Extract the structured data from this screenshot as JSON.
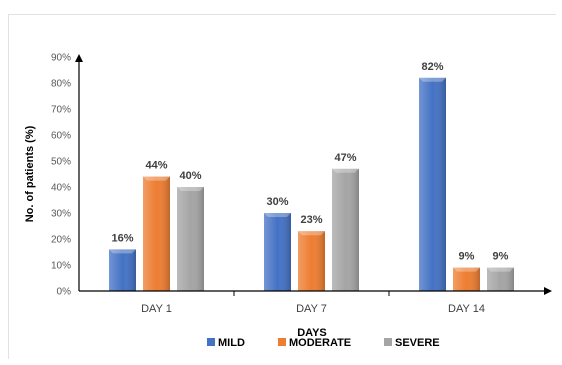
{
  "chart_data": {
    "type": "bar",
    "categories": [
      "DAY 1",
      "DAY 7",
      "DAY 14"
    ],
    "series": [
      {
        "name": "MILD",
        "values": [
          16,
          30,
          82
        ],
        "color": "#4472C4",
        "labels": [
          "16%",
          "30%",
          "82%"
        ]
      },
      {
        "name": "MODERATE",
        "values": [
          44,
          23,
          9
        ],
        "color": "#ED7D31",
        "labels": [
          "44%",
          "23%",
          "9%"
        ]
      },
      {
        "name": "SEVERE",
        "values": [
          40,
          47,
          9
        ],
        "color": "#A5A5A5",
        "labels": [
          "40%",
          "47%",
          "9%"
        ]
      }
    ],
    "xlabel": "DAYS",
    "ylabel": "No. of patients (%)",
    "ylim": [
      0,
      90
    ],
    "yticks": [
      "0%",
      "10%",
      "20%",
      "30%",
      "40%",
      "50%",
      "60%",
      "70%",
      "80%",
      "90%"
    ],
    "grid": false,
    "legend_position": "bottom"
  }
}
